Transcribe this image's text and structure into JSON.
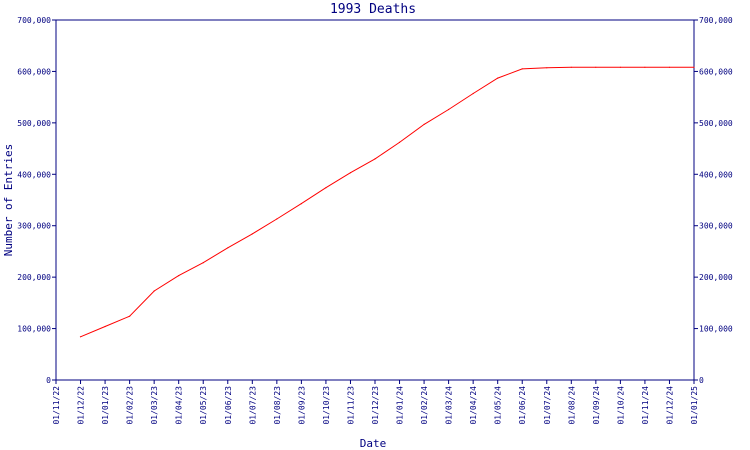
{
  "chart_data": {
    "type": "line",
    "title": "1993 Deaths",
    "xlabel": "Date",
    "ylabel": "Number of Entries",
    "ylim": [
      0,
      700000
    ],
    "y_ticks": [
      "0",
      "100,000",
      "200,000",
      "300,000",
      "400,000",
      "500,000",
      "600,000",
      "700,000"
    ],
    "x_ticks": [
      "01/11/22",
      "01/12/22",
      "01/01/23",
      "01/02/23",
      "01/03/23",
      "01/04/23",
      "01/05/23",
      "01/06/23",
      "01/07/23",
      "01/08/23",
      "01/09/23",
      "01/10/23",
      "01/11/23",
      "01/12/23",
      "01/01/24",
      "01/02/24",
      "01/03/24",
      "01/04/24",
      "01/05/24",
      "01/06/24",
      "01/07/24",
      "01/08/24",
      "01/09/24",
      "01/10/24",
      "01/11/24",
      "01/12/24",
      "01/01/25"
    ],
    "grid": false,
    "right_axis": true,
    "colors": {
      "axis": "#000080",
      "line": "#ff0000"
    },
    "series": [
      {
        "x": [
          "01/12/22",
          "01/01/23",
          "01/02/23",
          "01/03/23",
          "01/04/23",
          "01/05/23",
          "01/06/23",
          "01/07/23",
          "01/08/23",
          "01/09/23",
          "01/10/23",
          "01/11/23",
          "01/12/23",
          "01/01/24",
          "01/02/24",
          "01/03/24",
          "01/04/24",
          "01/05/24",
          "01/06/24",
          "01/07/24",
          "01/08/24",
          "01/09/24",
          "01/10/24",
          "01/11/24",
          "01/12/24",
          "01/01/25"
        ],
        "values": [
          84000,
          104000,
          124000,
          173000,
          203000,
          228000,
          257000,
          284000,
          313000,
          343000,
          374000,
          403000,
          430000,
          462000,
          497000,
          526000,
          557000,
          587000,
          605000,
          607000,
          608000,
          608000,
          608000,
          608000,
          608000,
          608000
        ]
      }
    ]
  }
}
